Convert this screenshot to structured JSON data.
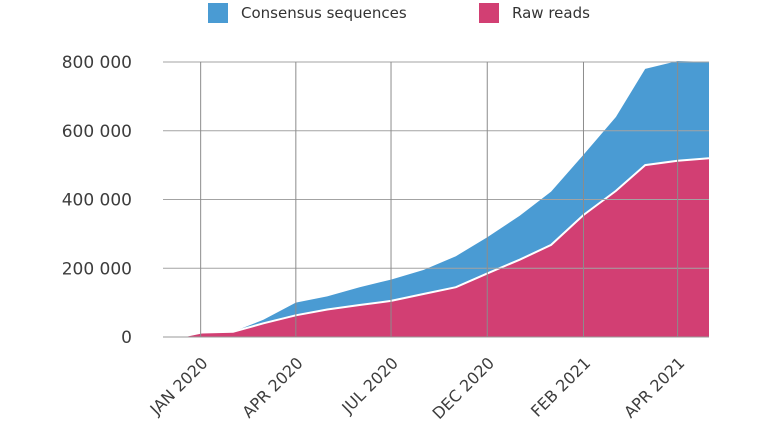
{
  "chart_data": {
    "type": "area",
    "stacked": true,
    "legend_position": "top",
    "grid": true,
    "ylim": [
      0,
      800000
    ],
    "yticks": [
      0,
      200000,
      400000,
      600000,
      800000
    ],
    "ytick_labels": [
      "0",
      "200 000",
      "400 000",
      "600 000",
      "800 000"
    ],
    "xlim": [
      "2019-11-25",
      "2021-04-30"
    ],
    "xticks": [
      "2019-12-31",
      "2020-03-31",
      "2020-06-30",
      "2020-09-30",
      "2020-12-31",
      "2021-03-31"
    ],
    "xtick_labels": [
      "JAN 2020",
      "APR 2020",
      "JUL 2020",
      "DEC 2020",
      "FEB 2021",
      "APR 2021"
    ],
    "x": [
      "2019-11-25",
      "2019-12-15",
      "2020-01-01",
      "2020-01-31",
      "2020-02-29",
      "2020-03-31",
      "2020-04-30",
      "2020-05-31",
      "2020-06-30",
      "2020-07-31",
      "2020-08-31",
      "2020-09-30",
      "2020-10-31",
      "2020-11-30",
      "2020-12-31",
      "2021-01-31",
      "2021-02-28",
      "2021-03-31",
      "2021-04-30"
    ],
    "series": [
      {
        "name": "Raw reads",
        "color": "#d23f73",
        "values": [
          0,
          2000,
          13000,
          15000,
          40000,
          63000,
          80000,
          93000,
          105000,
          125000,
          145000,
          185000,
          225000,
          268000,
          355000,
          425000,
          500000,
          513000,
          520000
        ]
      },
      {
        "name": "Consensus sequences",
        "color": "#4a9bd3",
        "values": [
          0,
          0,
          0,
          0,
          10000,
          37000,
          38000,
          52000,
          62000,
          70000,
          90000,
          105000,
          128000,
          155000,
          175000,
          215000,
          280000,
          290000,
          280000
        ]
      }
    ]
  }
}
